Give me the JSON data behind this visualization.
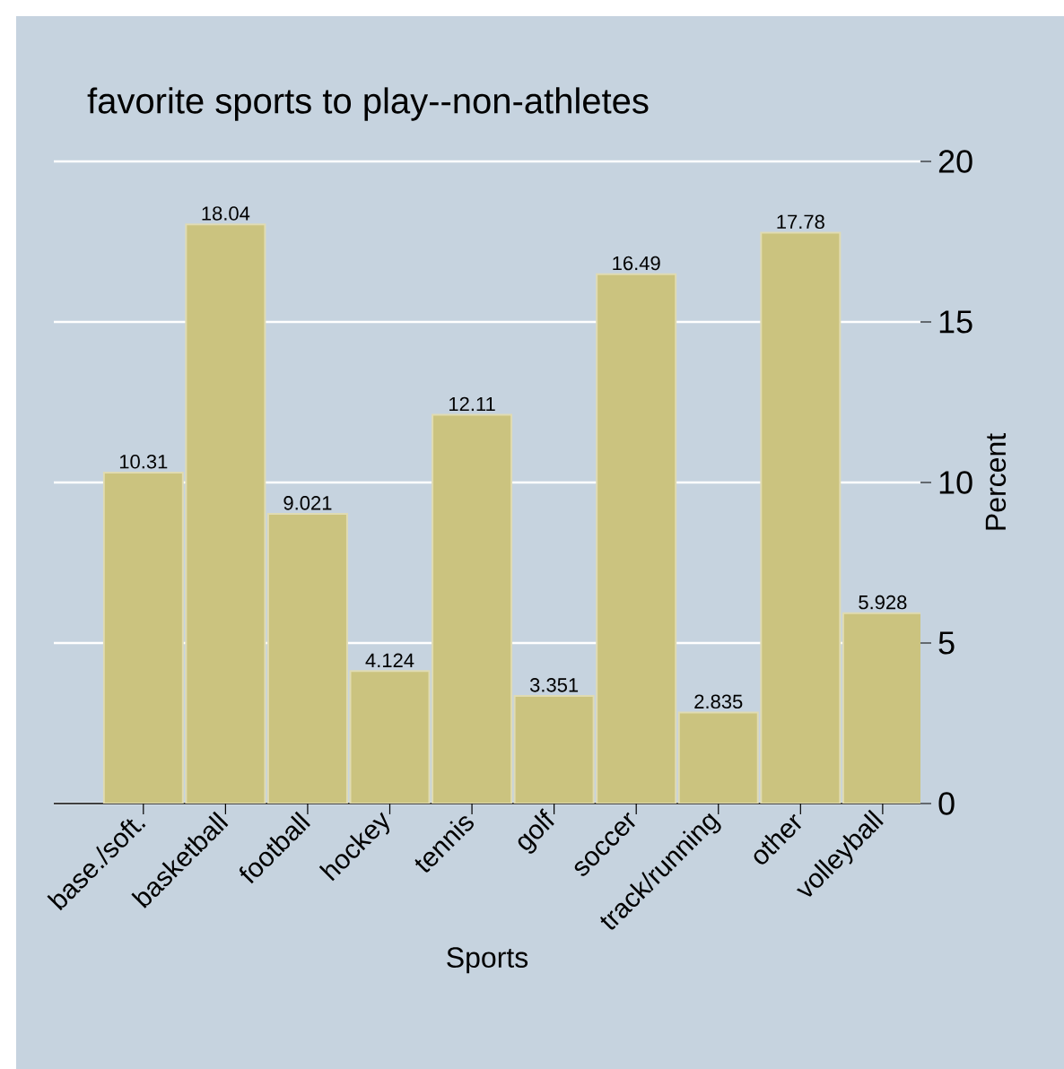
{
  "chart_data": {
    "type": "bar",
    "title": "favorite sports to play--non-athletes",
    "xlabel": "Sports",
    "ylabel": "Percent",
    "categories": [
      "base./soft.",
      "basketball",
      "football",
      "hockey",
      "tennis",
      "golf",
      "soccer",
      "track/running",
      "other",
      "volleyball"
    ],
    "values": [
      10.31,
      18.04,
      9.021,
      4.124,
      12.11,
      3.351,
      16.49,
      2.835,
      17.78,
      5.928
    ],
    "color": "#cbc37f",
    "ylim": [
      0,
      20
    ],
    "yticks": [
      0,
      5,
      10,
      15,
      20
    ],
    "grid": "y",
    "data_labels": true
  }
}
